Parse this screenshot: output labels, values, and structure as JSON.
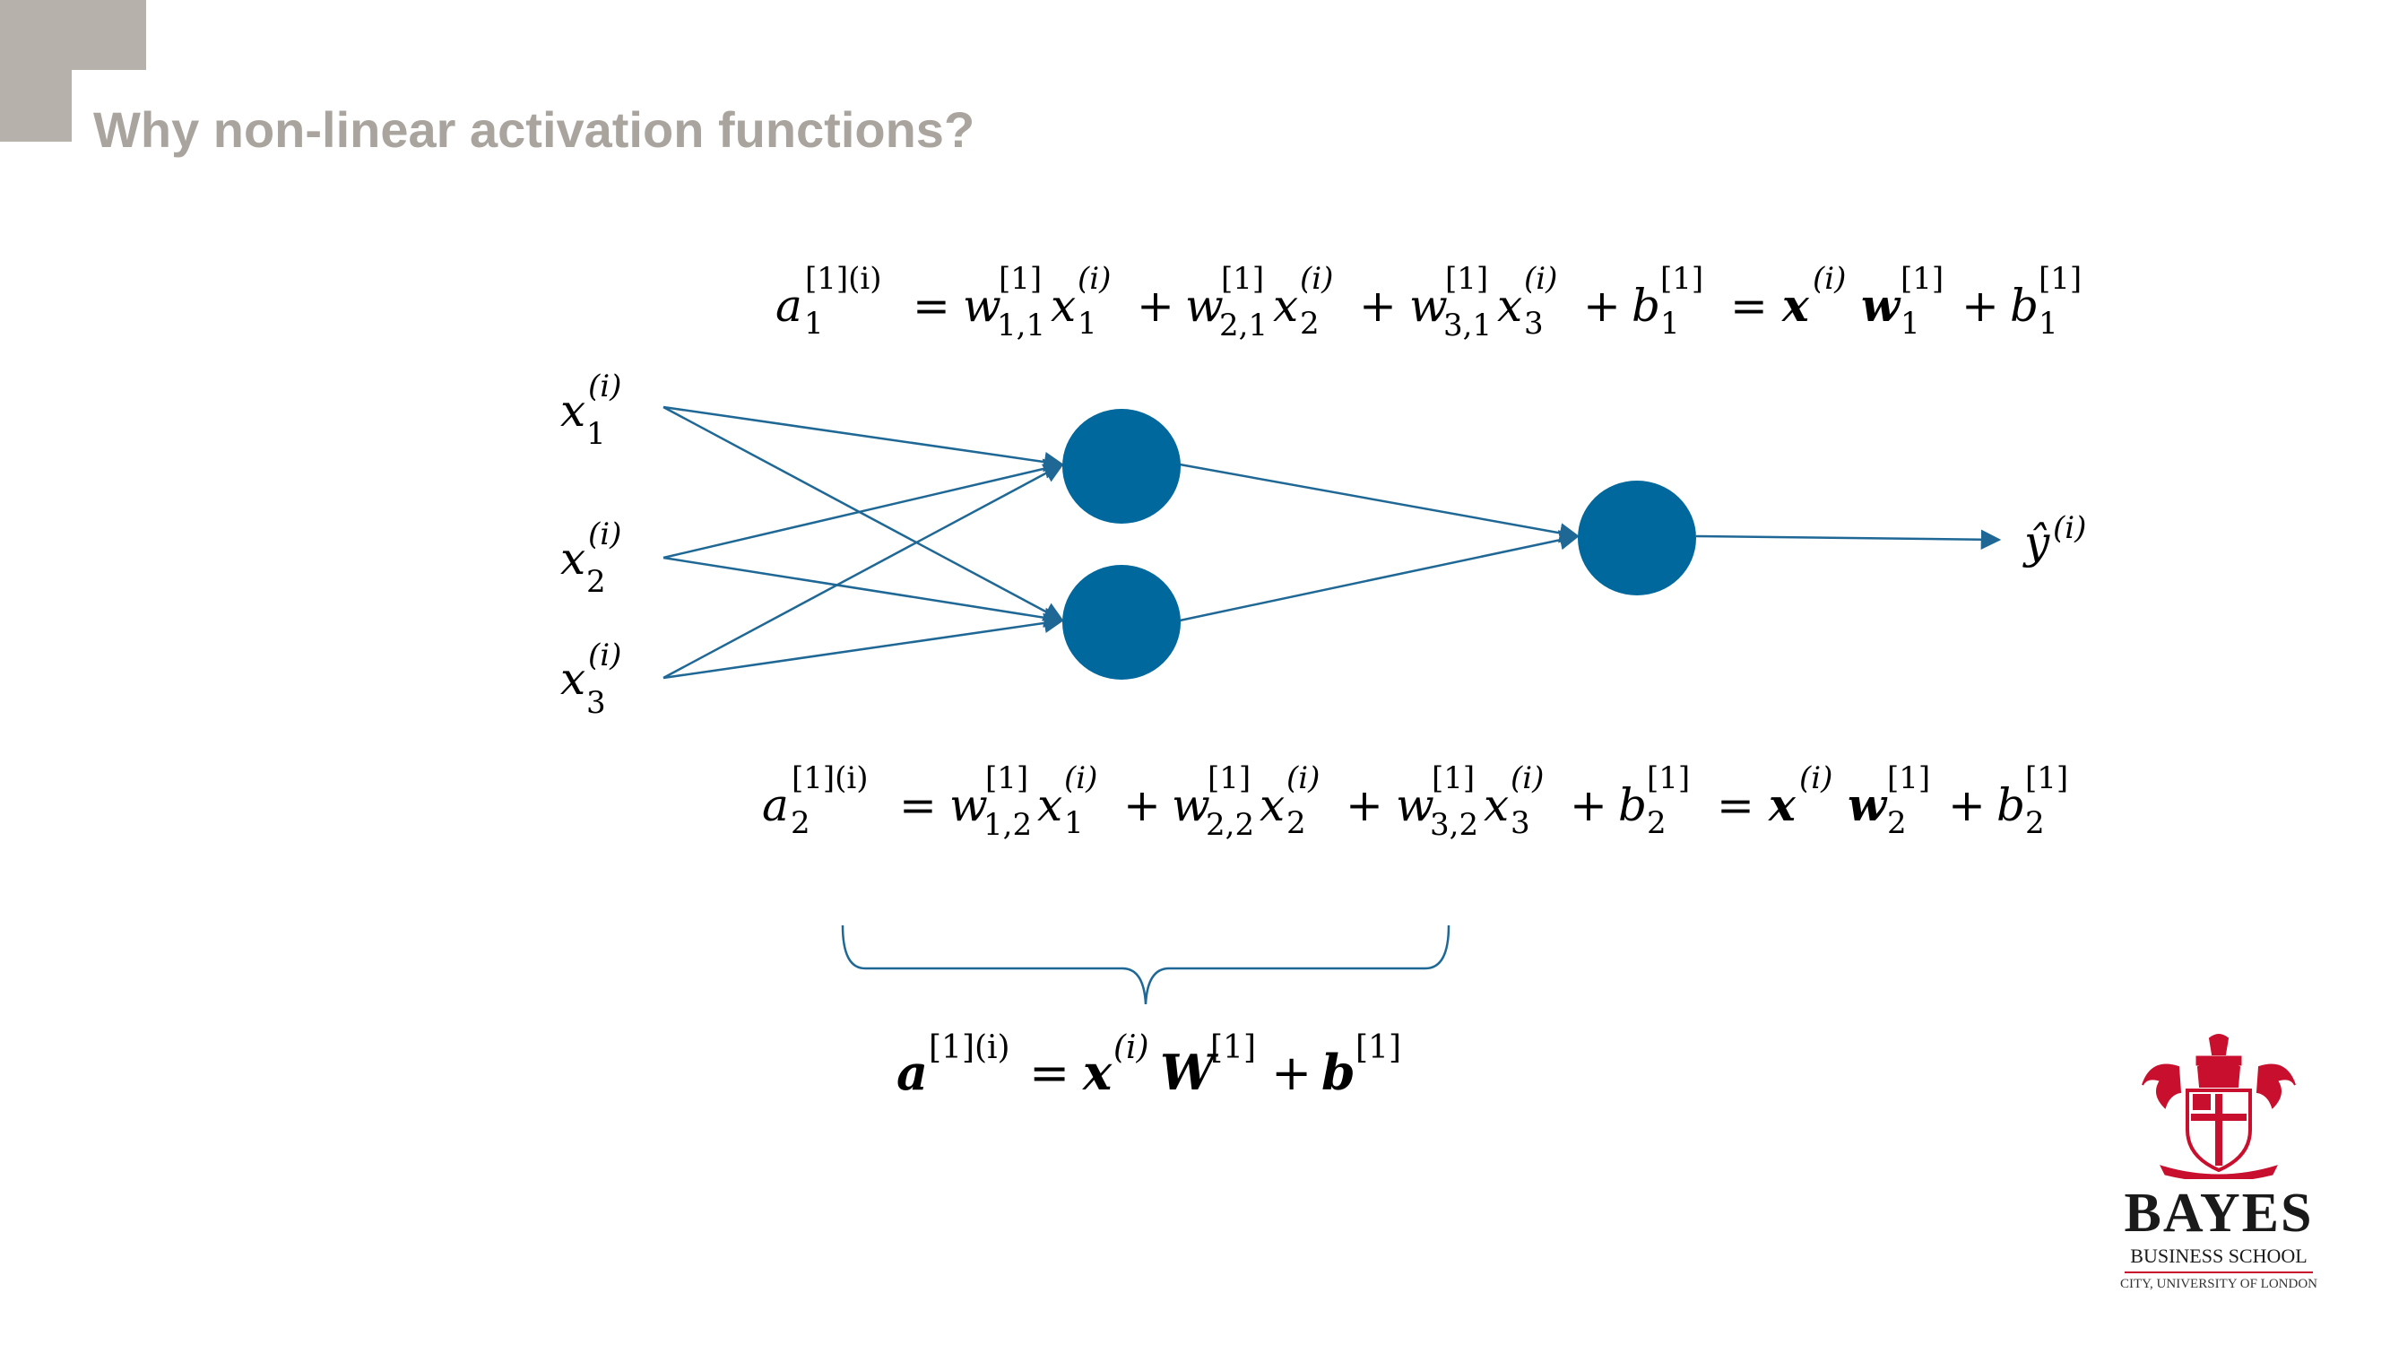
{
  "slide": {
    "title": "Why non-linear activation functions?"
  },
  "colors": {
    "accent_gray": "#b7b1ab",
    "title_gray": "#aaa49e",
    "node_blue": "#00689c",
    "arrow_blue": "#1f6896",
    "logo_red": "#c8102e"
  },
  "equations": {
    "neuron1": {
      "lhs": "a",
      "lhs_sup": "[1](i)",
      "lhs_sub": "1",
      "eq": "=",
      "terms": [
        {
          "w_sup": "[1]",
          "w_sub": "1,1",
          "x_sup": "(i)",
          "x_sub": "1"
        },
        {
          "w_sup": "[1]",
          "w_sub": "2,1",
          "x_sup": "(i)",
          "x_sub": "2"
        },
        {
          "w_sup": "[1]",
          "w_sub": "3,1",
          "x_sup": "(i)",
          "x_sub": "3"
        }
      ],
      "bias_sup": "[1]",
      "bias_sub": "1",
      "vector_x_sup": "(i)",
      "vector_w_sup": "[1]",
      "vector_w_sub": "1",
      "vector_b_sup": "[1]",
      "vector_b_sub": "1"
    },
    "neuron2": {
      "lhs": "a",
      "lhs_sup": "[1](i)",
      "lhs_sub": "2",
      "eq": "=",
      "terms": [
        {
          "w_sup": "[1]",
          "w_sub": "1,2",
          "x_sup": "(i)",
          "x_sub": "1"
        },
        {
          "w_sup": "[1]",
          "w_sub": "2,2",
          "x_sup": "(i)",
          "x_sub": "2"
        },
        {
          "w_sup": "[1]",
          "w_sub": "3,2",
          "x_sup": "(i)",
          "x_sub": "3"
        }
      ],
      "bias_sup": "[1]",
      "bias_sub": "2",
      "vector_x_sup": "(i)",
      "vector_w_sup": "[1]",
      "vector_w_sub": "2",
      "vector_b_sup": "[1]",
      "vector_b_sub": "2"
    },
    "layer": {
      "lhs": "a",
      "lhs_sup": "[1](i)",
      "x": "x",
      "x_sup": "(i)",
      "W": "W",
      "W_sup": "[1]",
      "b": "b",
      "b_sup": "[1]"
    }
  },
  "inputs": [
    {
      "symbol": "x",
      "sup": "(i)",
      "sub": "1"
    },
    {
      "symbol": "x",
      "sup": "(i)",
      "sub": "2"
    },
    {
      "symbol": "x",
      "sup": "(i)",
      "sub": "3"
    }
  ],
  "output": {
    "symbol": "ŷ",
    "sup": "(i)"
  },
  "logo": {
    "name": "BAYES",
    "line2": "BUSINESS SCHOOL",
    "line3": "CITY, UNIVERSITY OF LONDON"
  }
}
